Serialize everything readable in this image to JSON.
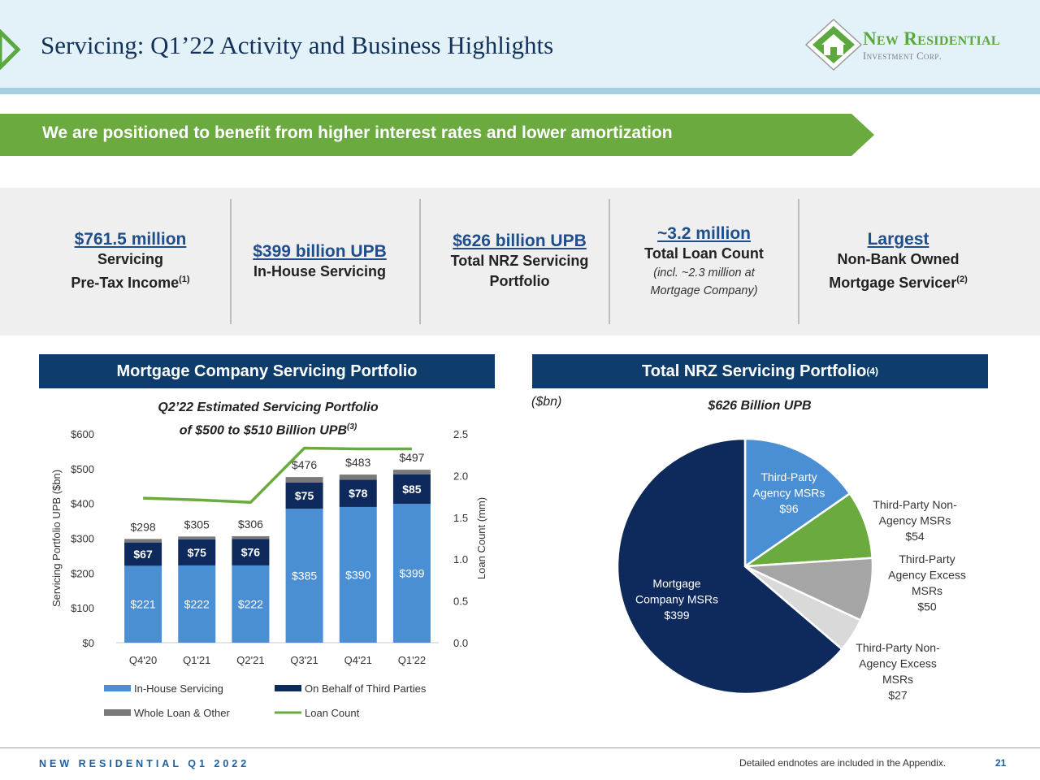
{
  "header": {
    "title": "Servicing: Q1’22 Activity and Business Highlights",
    "logo_name": "New Residential",
    "logo_sub": "Investment Corp."
  },
  "banner": {
    "text": "We are positioned to benefit from higher interest rates and lower amortization"
  },
  "kpis": [
    {
      "headline": "$761.5 million",
      "line1": "Servicing",
      "line2": "Pre-Tax Income",
      "sup": "(1)"
    },
    {
      "headline": "$399 billion UPB",
      "line1": "In-House Servicing"
    },
    {
      "headline": "$626 billion UPB",
      "line1": "Total NRZ Servicing",
      "line2": "Portfolio"
    },
    {
      "headline": "~3.2 million",
      "line1": "Total Loan Count",
      "italic1": "(incl. ~2.3 million at",
      "italic2": "Mortgage Company)"
    },
    {
      "headline": "Largest",
      "line1": "Non-Bank Owned",
      "line2": "Mortgage Servicer",
      "sup": "(2)"
    }
  ],
  "sections": {
    "left_title": "Mortgage Company Servicing Portfolio",
    "right_title": "Total NRZ Servicing Portfolio",
    "right_sup": "(4)"
  },
  "bar_subtitle": {
    "line1": "Q2’22 Estimated Servicing Portfolio",
    "line2": "of $500 to $510 Billion UPB",
    "sup": "(3)"
  },
  "pie_header": {
    "unit": "($bn)",
    "title": "$626 Billion UPB"
  },
  "chart_data": [
    {
      "type": "bar",
      "stacked": true,
      "categories": [
        "Q4'20",
        "Q1'21",
        "Q2'21",
        "Q3'21",
        "Q4'21",
        "Q1'22"
      ],
      "series": [
        {
          "name": "In-House Servicing",
          "values": [
            221,
            222,
            222,
            385,
            390,
            399
          ],
          "labels": [
            "$221",
            "$222",
            "$222",
            "$385",
            "$390",
            "$399"
          ],
          "color": "#4a8fd4"
        },
        {
          "name": "On Behalf of Third Parties",
          "values": [
            67,
            75,
            76,
            75,
            78,
            85
          ],
          "labels": [
            "$67",
            "$75",
            "$76",
            "$75",
            "$78",
            "$85"
          ],
          "color": "#0e2a5c"
        },
        {
          "name": "Whole Loan & Other",
          "values": [
            10,
            8,
            8,
            16,
            15,
            13
          ],
          "color": "#7a7a7a"
        }
      ],
      "line_series": {
        "name": "Loan Count",
        "axis": "right",
        "values": [
          1.73,
          1.71,
          1.68,
          2.33,
          2.32,
          2.32
        ],
        "color": "#6aaa3e"
      },
      "totals": [
        "$298",
        "$305",
        "$306",
        "$476",
        "$483",
        "$497"
      ],
      "ylabel": "Servicing Portfolio UPB ($bn)",
      "y2label": "Loan Count (mm)",
      "ylim": [
        0,
        600
      ],
      "y2lim": [
        0,
        2.5
      ],
      "yticks": [
        "$0",
        "$100",
        "$200",
        "$300",
        "$400",
        "$500",
        "$600"
      ],
      "y2ticks": [
        "0.0",
        "0.5",
        "1.0",
        "1.5",
        "2.0",
        "2.5"
      ],
      "grid": false,
      "legend": "bottom"
    },
    {
      "type": "pie",
      "slices": [
        {
          "label": "Third-Party Agency MSRs",
          "lines": [
            "Third-Party",
            "Agency MSRs",
            "$96"
          ],
          "value": 96,
          "color": "#4a8fd4"
        },
        {
          "label": "Third-Party Non-Agency MSRs",
          "lines": [
            "Third-Party Non-",
            "Agency MSRs",
            "$54"
          ],
          "value": 54,
          "color": "#6aaa3e"
        },
        {
          "label": "Third-Party Agency Excess MSRs",
          "lines": [
            "Third-Party",
            "Agency Excess",
            "MSRs",
            "$50"
          ],
          "value": 50,
          "color": "#a5a5a5"
        },
        {
          "label": "Third-Party Non-Agency Excess MSRs",
          "lines": [
            "Third-Party Non-",
            "Agency Excess",
            "MSRs",
            "$27"
          ],
          "value": 27,
          "color": "#d9d9d9"
        },
        {
          "label": "Mortgage Company MSRs",
          "lines": [
            "Mortgage",
            "Company MSRs",
            "$399"
          ],
          "value": 399,
          "color": "#0e2a5c"
        }
      ]
    }
  ],
  "footer": {
    "left": "NEW RESIDENTIAL Q1 2022",
    "note": "Detailed endnotes are included in the Appendix.",
    "page": "21"
  }
}
